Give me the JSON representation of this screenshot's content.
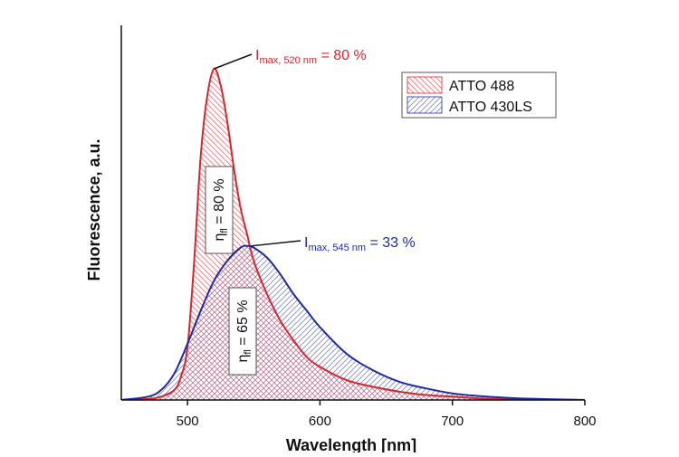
{
  "chart_data": {
    "type": "area",
    "xlabel": "Wavelength [nm]",
    "ylabel": "Fluorescence, a.u.",
    "xlim": [
      450,
      800
    ],
    "ylim": [
      0,
      100
    ],
    "xticks": [
      500,
      600,
      700,
      800
    ],
    "grid": false,
    "legend_position": "top-right",
    "series": [
      {
        "name": "ATTO 488",
        "color": "#d7262e",
        "hatch": "diagonal-down",
        "x": [
          450,
          470,
          480,
          490,
          495,
          500,
          505,
          510,
          515,
          520,
          525,
          530,
          535,
          540,
          545,
          550,
          560,
          570,
          580,
          590,
          600,
          620,
          640,
          660,
          680,
          700,
          720,
          750,
          800
        ],
        "y": [
          0,
          0.3,
          1,
          3,
          7,
          16,
          42,
          74,
          92,
          100,
          95,
          84,
          70,
          58,
          50,
          42,
          32,
          24,
          18,
          13,
          10,
          6,
          4,
          2.5,
          1.5,
          1,
          0.5,
          0.2,
          0
        ]
      },
      {
        "name": "ATTO 430LS",
        "color": "#1f2aa8",
        "hatch": "diagonal-up",
        "x": [
          450,
          470,
          480,
          490,
          500,
          510,
          520,
          530,
          540,
          545,
          550,
          560,
          570,
          580,
          590,
          600,
          620,
          640,
          660,
          680,
          700,
          720,
          750,
          800
        ],
        "y": [
          0,
          1,
          3,
          8,
          17,
          27,
          36,
          42,
          46,
          46.5,
          46,
          43,
          38,
          32,
          27,
          22,
          14,
          9,
          5.5,
          3.5,
          2,
          1.2,
          0.5,
          0
        ]
      }
    ],
    "annotations": {
      "peak_red": {
        "label_main": "I",
        "label_sub": "max, 520 nm",
        "label_tail": " = 80 %",
        "point": [
          520,
          100
        ],
        "color": "#d7262e"
      },
      "peak_blue": {
        "label_main": "I",
        "label_sub": "max, 545 nm",
        "label_tail": " = 33 %",
        "point": [
          548,
          46.5
        ],
        "color": "#1f2aa8"
      },
      "eta_red": {
        "label_main": "η",
        "label_sub": "fl",
        "label_tail": " = 80 %",
        "center": [
          520,
          66
        ]
      },
      "eta_blue": {
        "label_main": "η",
        "label_sub": "fl",
        "label_tail": " = 65 %",
        "center": [
          555,
          24
        ]
      }
    }
  }
}
